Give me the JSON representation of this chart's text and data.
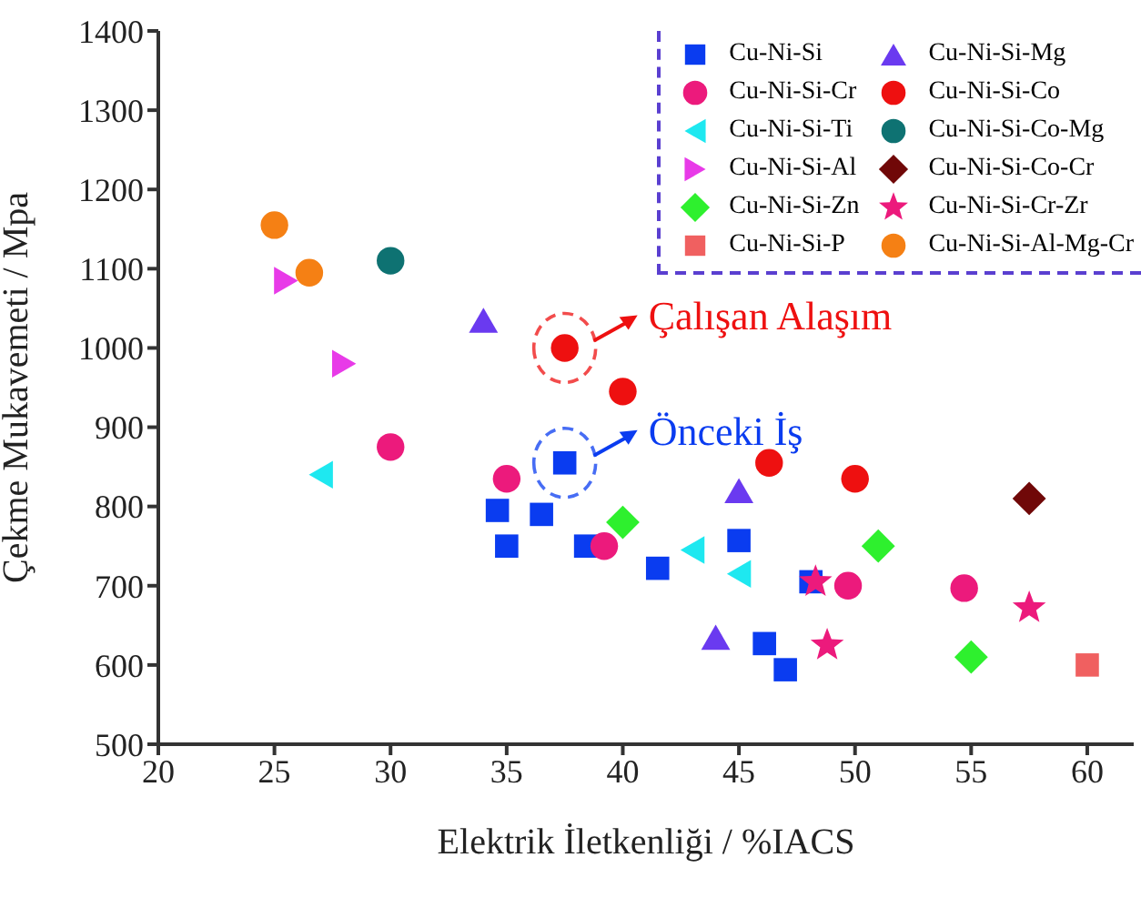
{
  "chart_data": {
    "type": "scatter",
    "xlabel": "Elektrik İletkenliği / %IACS",
    "ylabel": "Çekme Mukavemeti / Mpa",
    "xlim": [
      20,
      62
    ],
    "xticks": [
      20,
      25,
      30,
      35,
      40,
      45,
      50,
      55,
      60
    ],
    "ylim": [
      500,
      1400
    ],
    "yticks": [
      500,
      600,
      700,
      800,
      900,
      1000,
      1100,
      1200,
      1300,
      1400
    ],
    "grid": false,
    "legend": "top right",
    "series": [
      {
        "name": "Cu-Ni-Si",
        "color": "#0a3cf0",
        "marker": "square",
        "x": [
          34.6,
          35,
          36.5,
          37.5,
          38.4,
          41.5,
          45,
          48.1,
          46.1,
          47
        ],
        "values": [
          795,
          750,
          790,
          855,
          750,
          722,
          757,
          705,
          627,
          594
        ]
      },
      {
        "name": "Cu-Ni-Si-Cr",
        "color": "#ec1a7c",
        "marker": "circle",
        "x": [
          30,
          35,
          39.2,
          49.7,
          54.7
        ],
        "values": [
          875,
          835,
          750,
          700,
          697
        ]
      },
      {
        "name": "Cu-Ni-Si-Ti",
        "color": "#1ee8f0",
        "marker": "triangle-left",
        "x": [
          27,
          43,
          45
        ],
        "values": [
          840,
          745,
          715
        ]
      },
      {
        "name": "Cu-Ni-Si-Al",
        "color": "#e83ae8",
        "marker": "triangle-right",
        "x": [
          25.5,
          28
        ],
        "values": [
          1085,
          980
        ]
      },
      {
        "name": "Cu-Ni-Si-Zn",
        "color": "#2ef02e",
        "marker": "diamond",
        "x": [
          40,
          51,
          55
        ],
        "values": [
          780,
          750,
          610
        ]
      },
      {
        "name": "Cu-Ni-Si-P",
        "color": "#f06060",
        "marker": "square",
        "x": [
          60
        ],
        "values": [
          600
        ]
      },
      {
        "name": "Cu-Ni-Si-Mg",
        "color": "#6a3af0",
        "marker": "triangle",
        "x": [
          34,
          45,
          44
        ],
        "values": [
          1035,
          820,
          635
        ]
      },
      {
        "name": "Cu-Ni-Si-Co",
        "color": "#ee1010",
        "x": [
          37.5,
          40,
          46.3,
          50
        ],
        "values": [
          1000,
          945,
          855,
          835
        ]
      },
      {
        "name": "Cu-Ni-Si-Co-Mg",
        "color": "#0e7272",
        "x": [
          30
        ],
        "values": [
          1110
        ]
      },
      {
        "name": "Cu-Ni-Si-Co-Cr",
        "color": "#700808",
        "marker": "diamond",
        "x": [
          57.5
        ],
        "values": [
          810
        ]
      },
      {
        "name": "Cu-Ni-Si-Cr-Zr",
        "color": "#ec1a7c",
        "marker": "star",
        "x": [
          48.3,
          48.8,
          57.5
        ],
        "values": [
          705,
          625,
          672
        ]
      },
      {
        "name": "Cu-Ni-Si-Al-Mg-Cr",
        "color": "#f58014",
        "x": [
          25,
          26.5
        ],
        "values": [
          1155,
          1095
        ]
      }
    ],
    "annotations": [
      {
        "text": "Çalışan Alaşım",
        "x": 37.5,
        "y": 1000
      },
      {
        "text": "Önceki İş",
        "x": 37.5,
        "y": 855
      }
    ]
  }
}
